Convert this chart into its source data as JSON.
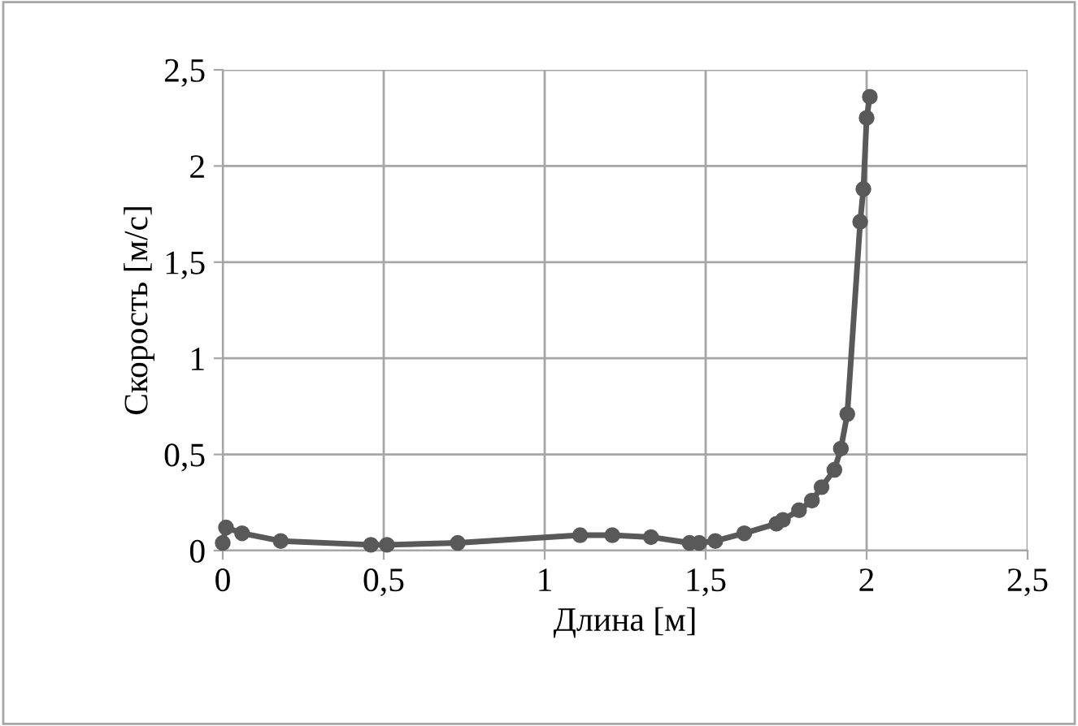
{
  "chart_data": {
    "type": "line",
    "xlabel": "Длина [м]",
    "ylabel": "Скорость [м/с]",
    "xlim": [
      0,
      2.5
    ],
    "xticks": [
      {
        "value": 0,
        "label": "0"
      },
      {
        "value": 0.5,
        "label": "0,5"
      },
      {
        "value": 1,
        "label": "1"
      },
      {
        "value": 1.5,
        "label": "1,5"
      },
      {
        "value": 2,
        "label": "2"
      },
      {
        "value": 2.5,
        "label": "2,5"
      }
    ],
    "ylim": [
      0,
      2.5
    ],
    "yticks": [
      {
        "value": 0,
        "label": "0"
      },
      {
        "value": 0.5,
        "label": "0,5"
      },
      {
        "value": 1,
        "label": "1"
      },
      {
        "value": 1.5,
        "label": "1,5"
      },
      {
        "value": 2,
        "label": "2"
      },
      {
        "value": 2.5,
        "label": "2,5"
      }
    ],
    "grid": true,
    "marker": "circle",
    "line_style": "solid",
    "series": [
      {
        "color": "#595959",
        "x": [
          0,
          0.01,
          0.06,
          0.18,
          0.46,
          0.51,
          0.73,
          1.11,
          1.21,
          1.33,
          1.45,
          1.48,
          1.53,
          1.62,
          1.72,
          1.74,
          1.79,
          1.83,
          1.86,
          1.9,
          1.92,
          1.94,
          1.98,
          1.99,
          2.0,
          2.01
        ],
        "values": [
          0.04,
          0.12,
          0.09,
          0.05,
          0.03,
          0.03,
          0.04,
          0.08,
          0.08,
          0.07,
          0.04,
          0.04,
          0.05,
          0.09,
          0.14,
          0.16,
          0.21,
          0.26,
          0.33,
          0.42,
          0.53,
          0.71,
          1.71,
          1.88,
          2.25,
          2.36
        ]
      }
    ]
  }
}
